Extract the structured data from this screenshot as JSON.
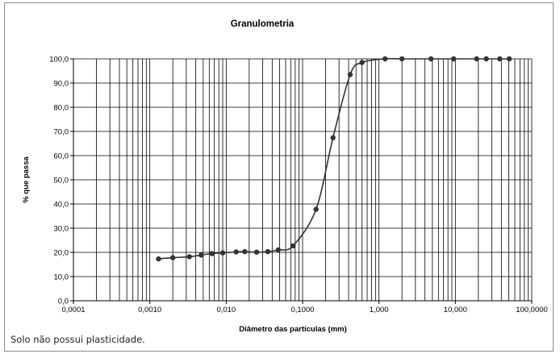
{
  "chart_data": {
    "type": "scatter",
    "title": "Granulometria",
    "xlabel": "Diâmetro das partículas (mm)",
    "ylabel": "% que passa",
    "xscale": "log",
    "xlim": [
      0.0001,
      100
    ],
    "ylim": [
      0,
      100
    ],
    "x_tick_values": [
      0.0001,
      0.001,
      0.01,
      0.1,
      1,
      10,
      100
    ],
    "x_tick_labels": [
      "0,0001",
      "0,0010",
      "0,010",
      "0,1000",
      "1,000",
      "10,000",
      "100,0000"
    ],
    "y_tick_values": [
      0,
      10,
      20,
      30,
      40,
      50,
      60,
      70,
      80,
      90,
      100
    ],
    "y_tick_labels": [
      "0,0",
      "10,0",
      "20,0",
      "30,0",
      "40,0",
      "50,0",
      "60,0",
      "70,0",
      "80,0",
      "90,0",
      "100,0"
    ],
    "grid": true,
    "legend": "none",
    "series": [
      {
        "x": [
          0.0013,
          0.002,
          0.0033,
          0.0047,
          0.0065,
          0.009,
          0.0135,
          0.0175,
          0.025,
          0.035,
          0.048,
          0.075,
          0.15,
          0.25,
          0.42,
          0.6,
          1.2,
          2.0,
          4.8,
          9.5,
          19,
          25.4,
          38.1,
          50.8
        ],
        "y": [
          17.3,
          17.8,
          18.2,
          18.9,
          19.5,
          19.8,
          20.2,
          20.3,
          20.1,
          20.3,
          21.0,
          22.7,
          37.8,
          67.4,
          93.5,
          98.5,
          100,
          100,
          100,
          100,
          100,
          100,
          100,
          100
        ],
        "color": "#333333"
      }
    ]
  },
  "note": "Solo não possui plasticidade."
}
